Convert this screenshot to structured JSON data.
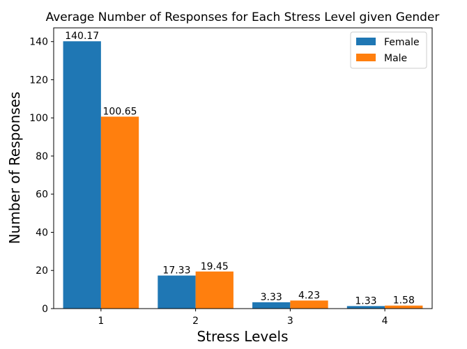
{
  "chart_data": {
    "type": "bar",
    "title": "Average Number of Responses for Each Stress Level given Gender",
    "xlabel": "Stress Levels",
    "ylabel": "Number of Responses",
    "categories": [
      "1",
      "2",
      "3",
      "4"
    ],
    "series": [
      {
        "name": "Female",
        "color": "#1f77b4",
        "values": [
          140.17,
          17.33,
          3.33,
          1.33
        ],
        "labels": [
          "140.17",
          "17.33",
          "3.33",
          "1.33"
        ]
      },
      {
        "name": "Male",
        "color": "#ff7f0e",
        "values": [
          100.65,
          19.45,
          4.23,
          1.58
        ],
        "labels": [
          "100.65",
          "19.45",
          "4.23",
          "1.58"
        ]
      }
    ],
    "ylim": [
      0,
      147.2
    ],
    "yticks": [
      0,
      20,
      40,
      60,
      80,
      100,
      120,
      140
    ],
    "grid": false,
    "legend_position": "top-right"
  }
}
